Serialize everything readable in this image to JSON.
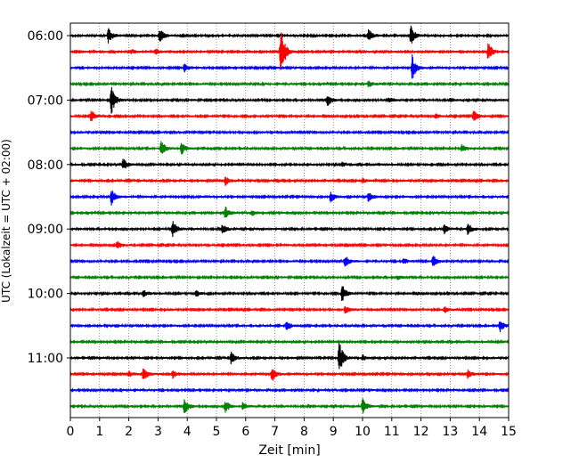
{
  "chart_data": {
    "type": "line",
    "title": "",
    "xlabel": "Zeit  [min]",
    "ylabel": "UTC (Lokalzeit = UTC + 02:00)",
    "xlim": [
      0,
      15
    ],
    "x_ticks": [
      "0",
      "1",
      "2",
      "3",
      "4",
      "5",
      "6",
      "7",
      "8",
      "9",
      "10",
      "11",
      "12",
      "13",
      "14",
      "15"
    ],
    "y_tick_labels": [
      "06:00",
      "07:00",
      "08:00",
      "09:00",
      "10:00",
      "11:00"
    ],
    "grid": "vertical dotted at each minute",
    "color_cycle": [
      "#000000",
      "#ff0000",
      "#0000ff",
      "#008000"
    ],
    "series": [
      {
        "row_time": "06:00",
        "color": "#000000",
        "events": [
          {
            "t": 1.3,
            "amp": 0.7
          },
          {
            "t": 3.05,
            "amp": 0.7
          },
          {
            "t": 10.2,
            "amp": 0.6
          },
          {
            "t": 11.65,
            "amp": 0.9
          }
        ]
      },
      {
        "row_time": "06:15",
        "color": "#ff0000",
        "events": [
          {
            "t": 2.1,
            "amp": 0.2
          },
          {
            "t": 2.9,
            "amp": 0.3
          },
          {
            "t": 7.2,
            "amp": 2.5
          },
          {
            "t": 14.3,
            "amp": 0.9
          }
        ]
      },
      {
        "row_time": "06:30",
        "color": "#0000ff",
        "events": [
          {
            "t": 3.9,
            "amp": 0.4
          },
          {
            "t": 11.7,
            "amp": 1.2
          }
        ]
      },
      {
        "row_time": "06:45",
        "color": "#008000",
        "events": [
          {
            "t": 10.2,
            "amp": 0.3
          }
        ]
      },
      {
        "row_time": "07:00",
        "color": "#000000",
        "events": [
          {
            "t": 1.4,
            "amp": 1.4
          },
          {
            "t": 8.8,
            "amp": 0.6
          },
          {
            "t": 10.9,
            "amp": 0.3
          },
          {
            "t": 13.0,
            "amp": 0.2
          }
        ]
      },
      {
        "row_time": "07:15",
        "color": "#ff0000",
        "events": [
          {
            "t": 0.7,
            "amp": 0.6
          },
          {
            "t": 12.5,
            "amp": 0.2
          },
          {
            "t": 13.8,
            "amp": 0.5
          }
        ]
      },
      {
        "row_time": "07:30",
        "color": "#0000ff",
        "events": []
      },
      {
        "row_time": "07:45",
        "color": "#008000",
        "events": [
          {
            "t": 3.1,
            "amp": 0.8
          },
          {
            "t": 3.8,
            "amp": 0.6
          },
          {
            "t": 13.4,
            "amp": 0.4
          }
        ]
      },
      {
        "row_time": "08:00",
        "color": "#000000",
        "events": [
          {
            "t": 1.8,
            "amp": 0.6
          },
          {
            "t": 9.3,
            "amp": 0.2
          }
        ]
      },
      {
        "row_time": "08:15",
        "color": "#ff0000",
        "events": [
          {
            "t": 5.3,
            "amp": 0.5
          },
          {
            "t": 10.0,
            "amp": 0.2
          }
        ]
      },
      {
        "row_time": "08:30",
        "color": "#0000ff",
        "events": [
          {
            "t": 1.4,
            "amp": 0.8
          },
          {
            "t": 8.9,
            "amp": 0.5
          },
          {
            "t": 10.2,
            "amp": 0.5
          }
        ]
      },
      {
        "row_time": "08:45",
        "color": "#008000",
        "events": [
          {
            "t": 5.3,
            "amp": 0.6
          },
          {
            "t": 6.2,
            "amp": 0.3
          }
        ]
      },
      {
        "row_time": "09:00",
        "color": "#000000",
        "events": [
          {
            "t": 3.5,
            "amp": 0.8
          },
          {
            "t": 5.2,
            "amp": 0.5
          },
          {
            "t": 12.8,
            "amp": 0.5
          },
          {
            "t": 13.6,
            "amp": 0.6
          }
        ]
      },
      {
        "row_time": "09:15",
        "color": "#ff0000",
        "events": [
          {
            "t": 1.6,
            "amp": 0.4
          }
        ]
      },
      {
        "row_time": "09:30",
        "color": "#0000ff",
        "events": [
          {
            "t": 9.4,
            "amp": 0.6
          },
          {
            "t": 11.4,
            "amp": 0.3
          },
          {
            "t": 12.4,
            "amp": 0.6
          }
        ]
      },
      {
        "row_time": "09:45",
        "color": "#008000",
        "events": [
          {
            "t": 11.2,
            "amp": 0.2
          }
        ]
      },
      {
        "row_time": "10:00",
        "color": "#000000",
        "events": [
          {
            "t": 2.5,
            "amp": 0.3
          },
          {
            "t": 4.3,
            "amp": 0.3
          },
          {
            "t": 9.3,
            "amp": 0.8
          }
        ]
      },
      {
        "row_time": "10:15",
        "color": "#ff0000",
        "events": [
          {
            "t": 9.4,
            "amp": 0.4
          },
          {
            "t": 12.8,
            "amp": 0.3
          }
        ]
      },
      {
        "row_time": "10:30",
        "color": "#0000ff",
        "events": [
          {
            "t": 7.4,
            "amp": 0.5
          },
          {
            "t": 14.7,
            "amp": 0.6
          }
        ]
      },
      {
        "row_time": "10:45",
        "color": "#008000",
        "events": []
      },
      {
        "row_time": "11:00",
        "color": "#000000",
        "events": [
          {
            "t": 5.5,
            "amp": 0.6
          },
          {
            "t": 9.2,
            "amp": 1.6
          },
          {
            "t": 10.0,
            "amp": 0.3
          }
        ]
      },
      {
        "row_time": "11:15",
        "color": "#ff0000",
        "events": [
          {
            "t": 2.0,
            "amp": 0.3
          },
          {
            "t": 2.5,
            "amp": 0.7
          },
          {
            "t": 3.5,
            "amp": 0.4
          },
          {
            "t": 6.9,
            "amp": 0.8
          },
          {
            "t": 13.6,
            "amp": 0.4
          }
        ]
      },
      {
        "row_time": "11:30",
        "color": "#0000ff",
        "events": []
      },
      {
        "row_time": "11:45",
        "color": "#008000",
        "events": [
          {
            "t": 3.9,
            "amp": 0.8
          },
          {
            "t": 5.3,
            "amp": 0.6
          },
          {
            "t": 5.9,
            "amp": 0.4
          },
          {
            "t": 10.0,
            "amp": 0.7
          }
        ]
      }
    ]
  }
}
